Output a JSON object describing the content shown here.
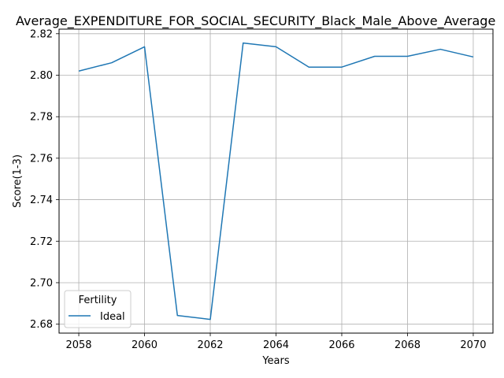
{
  "chart_data": {
    "type": "line",
    "title": "Average_EXPENDITURE_FOR_SOCIAL_SECURITY_Black_Male_Above_Average",
    "xlabel": "Years",
    "ylabel": "Score(1-3)",
    "x": [
      2058,
      2059,
      2060,
      2061,
      2062,
      2063,
      2064,
      2065,
      2066,
      2067,
      2068,
      2069,
      2070
    ],
    "series": [
      {
        "name": "Ideal",
        "color": "#1f77b4",
        "values": [
          2.802,
          2.806,
          2.8137,
          2.6842,
          2.6823,
          2.8155,
          2.8137,
          2.8039,
          2.8039,
          2.8091,
          2.8091,
          2.8125,
          2.8088
        ]
      }
    ],
    "xlim": [
      2057.4,
      2070.6
    ],
    "ylim": [
      2.6757,
      2.8222
    ],
    "xticks": [
      2058,
      2060,
      2062,
      2064,
      2066,
      2068,
      2070
    ],
    "yticks": [
      2.68,
      2.7,
      2.72,
      2.74,
      2.76,
      2.78,
      2.8,
      2.82
    ],
    "ytick_labels": [
      "2.68",
      "2.70",
      "2.72",
      "2.74",
      "2.76",
      "2.78",
      "2.80",
      "2.82"
    ],
    "grid": true,
    "legend": {
      "title": "Fertility",
      "placement": "lower-left"
    }
  }
}
